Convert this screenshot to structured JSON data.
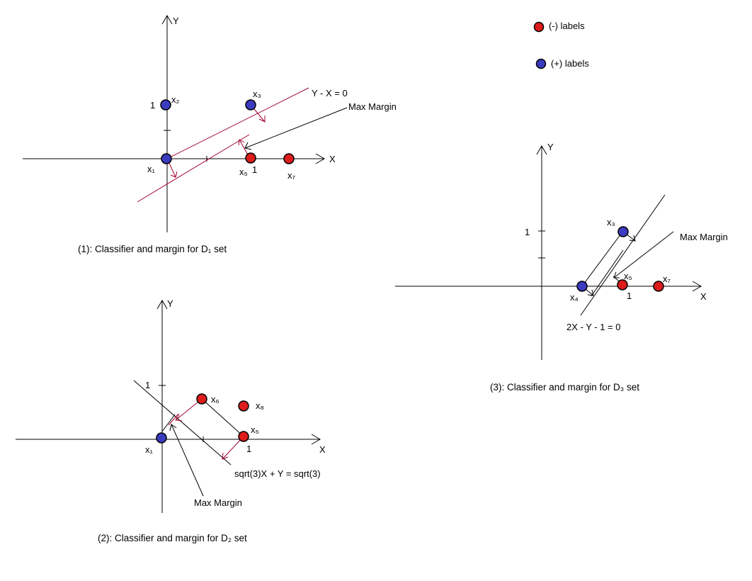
{
  "legend": {
    "negative": {
      "label": "(-) labels",
      "color": "#dd1c1c"
    },
    "positive": {
      "label": "(+) labels",
      "color": "#3b3bbf"
    }
  },
  "axis_labels": {
    "x": "X",
    "y": "Y",
    "one": "1"
  },
  "points": {
    "x1": "x₁",
    "x2": "x₂",
    "x3": "x₃",
    "x4": "x₄",
    "x5": "x₅",
    "x6": "x₆",
    "x7": "x₇",
    "x8": "x₈"
  },
  "panel1": {
    "classifier": "Y - X = 0",
    "margin_label": "Max Margin",
    "caption": "(1): Classifier and margin for D₁ set"
  },
  "panel2": {
    "classifier": "sqrt(3)X + Y = sqrt(3)",
    "margin_label": "Max Margin",
    "caption": "(2): Classifier and margin for D₂ set"
  },
  "panel3": {
    "classifier": "2X - Y - 1 = 0",
    "margin_label": "Max Margin",
    "caption": "(3): Classifier and margin for D₃ set"
  }
}
